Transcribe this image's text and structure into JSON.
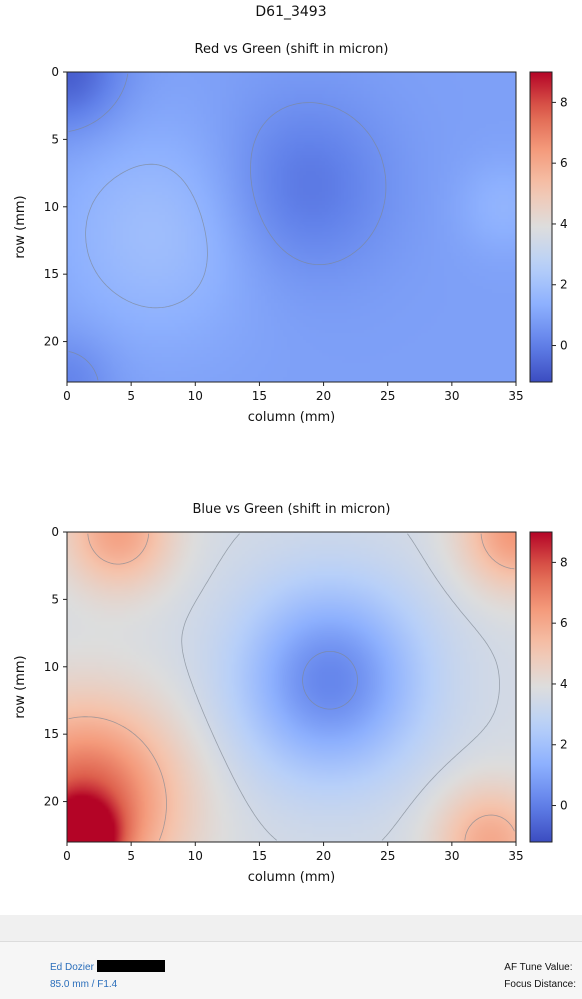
{
  "page_title": "D61_3493",
  "chart_data": [
    {
      "type": "heatmap",
      "title": "Red vs Green (shift in micron)",
      "xlabel": "column (mm)",
      "ylabel": "row (mm)",
      "xlim": [
        0,
        35
      ],
      "ylim": [
        0,
        23
      ],
      "y_inverted": true,
      "xticks": [
        0,
        5,
        10,
        15,
        20,
        25,
        30,
        35
      ],
      "yticks": [
        0,
        5,
        10,
        15,
        20
      ],
      "colormap": "coolwarm",
      "color_range": [
        -1.2,
        9
      ],
      "colorbar_ticks": [
        0,
        2,
        4,
        6,
        8
      ],
      "contour_levels": [
        0.5,
        1.5
      ],
      "grid": false,
      "features": [
        {
          "x": 0,
          "y": 0,
          "value": -0.8,
          "spread": 3
        },
        {
          "x": 18.5,
          "y": 8.5,
          "value": -0.2,
          "spread": 4.5
        },
        {
          "x": 7,
          "y": 12,
          "value": 1.9,
          "spread": 5.5
        },
        {
          "x": 34,
          "y": 10,
          "value": 1.5,
          "spread": 2.5
        },
        {
          "x": 0,
          "y": 23,
          "value": 0.1,
          "spread": 2.5
        }
      ],
      "baseline": 0.9
    },
    {
      "type": "heatmap",
      "title": "Blue vs Green (shift in micron)",
      "xlabel": "column (mm)",
      "ylabel": "row (mm)",
      "xlim": [
        0,
        35
      ],
      "ylim": [
        0,
        23
      ],
      "y_inverted": true,
      "xticks": [
        0,
        5,
        10,
        15,
        20,
        25,
        30,
        35
      ],
      "yticks": [
        0,
        5,
        10,
        15,
        20
      ],
      "colormap": "coolwarm",
      "color_range": [
        -1.2,
        9
      ],
      "colorbar_ticks": [
        0,
        2,
        4,
        6,
        8
      ],
      "contour_levels": [
        0.5,
        3.5,
        5.5
      ],
      "grid": false,
      "features": [
        {
          "x": 20.5,
          "y": 11,
          "value": 0.2,
          "spread": 5
        },
        {
          "x": 1.5,
          "y": 20,
          "value": 7.8,
          "spread": 5
        },
        {
          "x": 1,
          "y": 23,
          "value": 8.8,
          "spread": 2
        },
        {
          "x": 4,
          "y": 0,
          "value": 6.2,
          "spread": 3
        },
        {
          "x": 35,
          "y": 0,
          "value": 6.5,
          "spread": 3
        },
        {
          "x": 33,
          "y": 23,
          "value": 6.0,
          "spread": 3
        }
      ],
      "baseline": 3.6
    }
  ],
  "footer": {
    "author": "Ed Dozier",
    "lens": "85.0 mm / F1.4",
    "af_tune_label": "AF Tune Value:",
    "focus_distance_label": "Focus Distance:"
  }
}
